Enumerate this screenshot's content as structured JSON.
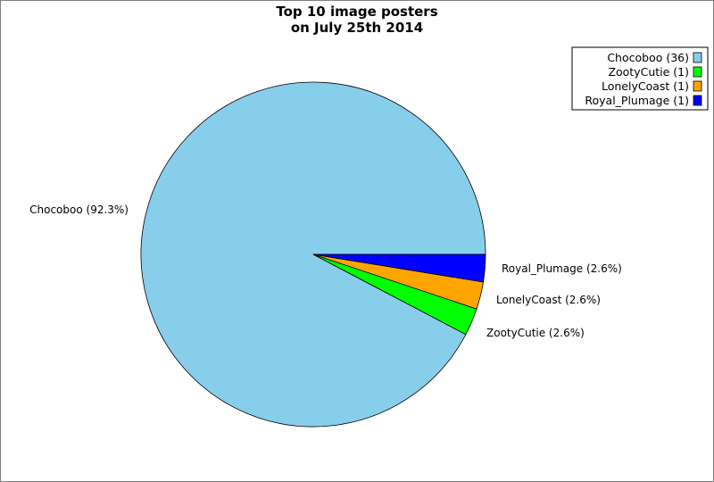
{
  "chart_data": {
    "type": "pie",
    "title": [
      "Top 10 image posters",
      "on July 25th 2014"
    ],
    "slices": [
      {
        "name": "Chocoboo",
        "value": 36,
        "percent_label": "Chocoboo (92.3%)",
        "legend_label": "Chocoboo (36)",
        "color": "#87ceeb"
      },
      {
        "name": "ZootyCutie",
        "value": 1,
        "percent_label": "ZootyCutie (2.6%)",
        "legend_label": "ZootyCutie (1)",
        "color": "#00ff00"
      },
      {
        "name": "LonelyCoast",
        "value": 1,
        "percent_label": "LonelyCoast (2.6%)",
        "legend_label": "LonelyCoast (1)",
        "color": "#ffa500"
      },
      {
        "name": "Royal_Plumage",
        "value": 1,
        "percent_label": "Royal_Plumage (2.6%)",
        "legend_label": "Royal_Plumage (1)",
        "color": "#0000ff"
      }
    ],
    "legend_position": "top-right",
    "direction": "clockwise from 3 o'clock, first slice counter-clockwise"
  }
}
